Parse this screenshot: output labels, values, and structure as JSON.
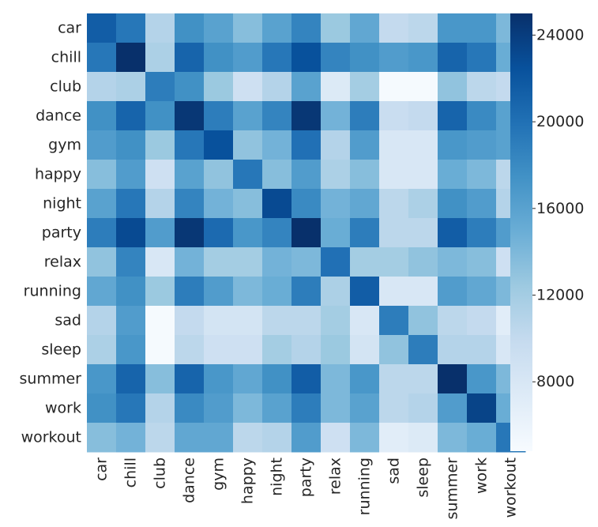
{
  "chart_data": {
    "type": "heatmap",
    "title": "",
    "xlabel": "",
    "ylabel": "",
    "x_categories": [
      "car",
      "chill",
      "club",
      "dance",
      "gym",
      "happy",
      "night",
      "party",
      "relax",
      "running",
      "sad",
      "sleep",
      "summer",
      "work",
      "workout"
    ],
    "y_categories": [
      "car",
      "chill",
      "club",
      "dance",
      "gym",
      "happy",
      "night",
      "party",
      "relax",
      "running",
      "sad",
      "sleep",
      "summer",
      "work",
      "workout"
    ],
    "values": [
      [
        21500,
        19500,
        11000,
        17500,
        16000,
        13500,
        16000,
        18500,
        12500,
        15500,
        10000,
        10500,
        17000,
        17000,
        14000
      ],
      [
        19500,
        25000,
        11500,
        21000,
        17500,
        16500,
        19500,
        22500,
        18500,
        17500,
        16500,
        17000,
        21000,
        19500,
        15000
      ],
      [
        11000,
        11500,
        19000,
        17500,
        12500,
        9000,
        11000,
        16000,
        7500,
        12000,
        5000,
        5000,
        13000,
        10500,
        10000
      ],
      [
        17500,
        21000,
        17500,
        24500,
        19000,
        16000,
        18500,
        24500,
        14500,
        19000,
        9500,
        10000,
        21000,
        18000,
        16000
      ],
      [
        16500,
        17500,
        12500,
        19500,
        22500,
        13000,
        14500,
        20000,
        11000,
        16500,
        8000,
        8000,
        17000,
        16500,
        16000
      ],
      [
        13500,
        16500,
        9000,
        16000,
        13000,
        19500,
        13500,
        16500,
        11500,
        13500,
        8000,
        8000,
        15000,
        14000,
        10500
      ],
      [
        16000,
        19500,
        11000,
        18500,
        14500,
        13500,
        23000,
        18000,
        14500,
        15500,
        10500,
        11500,
        17500,
        16500,
        11000
      ],
      [
        19000,
        23000,
        16500,
        24500,
        20500,
        17000,
        18500,
        25000,
        15000,
        19000,
        10500,
        10500,
        21500,
        19000,
        16500
      ],
      [
        13000,
        18500,
        8000,
        14500,
        12000,
        12000,
        14500,
        14000,
        20000,
        12000,
        12000,
        13000,
        14000,
        13500,
        9000
      ],
      [
        15500,
        17500,
        12500,
        19000,
        16500,
        14000,
        15000,
        19000,
        11500,
        21500,
        8000,
        8000,
        16500,
        15500,
        14000
      ],
      [
        11000,
        16500,
        5000,
        10000,
        8500,
        8500,
        10500,
        10500,
        12000,
        8000,
        19000,
        13000,
        10500,
        10000,
        7000
      ],
      [
        11500,
        17000,
        5000,
        10500,
        9000,
        9000,
        12000,
        11000,
        12500,
        8500,
        13000,
        19000,
        11000,
        11000,
        8000
      ],
      [
        17000,
        21000,
        13500,
        21000,
        17000,
        15500,
        17500,
        21500,
        14000,
        17000,
        10500,
        10500,
        25000,
        17000,
        14000
      ],
      [
        17500,
        19500,
        11000,
        18000,
        16500,
        14000,
        16000,
        19000,
        14000,
        16000,
        10500,
        11000,
        16500,
        23500,
        15000
      ],
      [
        13500,
        14500,
        10500,
        15500,
        15500,
        10500,
        11000,
        16500,
        9000,
        14000,
        7000,
        7500,
        14000,
        15000,
        19500
      ]
    ],
    "colormap": "Blues",
    "vmin": 4800,
    "vmax": 25000,
    "colorbar_ticks": [
      8000,
      12000,
      16000,
      20000,
      24000
    ],
    "colorbar_tick_labels": [
      "8000",
      "12000",
      "16000",
      "20000",
      "24000"
    ],
    "grid": false,
    "legend": "colorbar-right"
  }
}
